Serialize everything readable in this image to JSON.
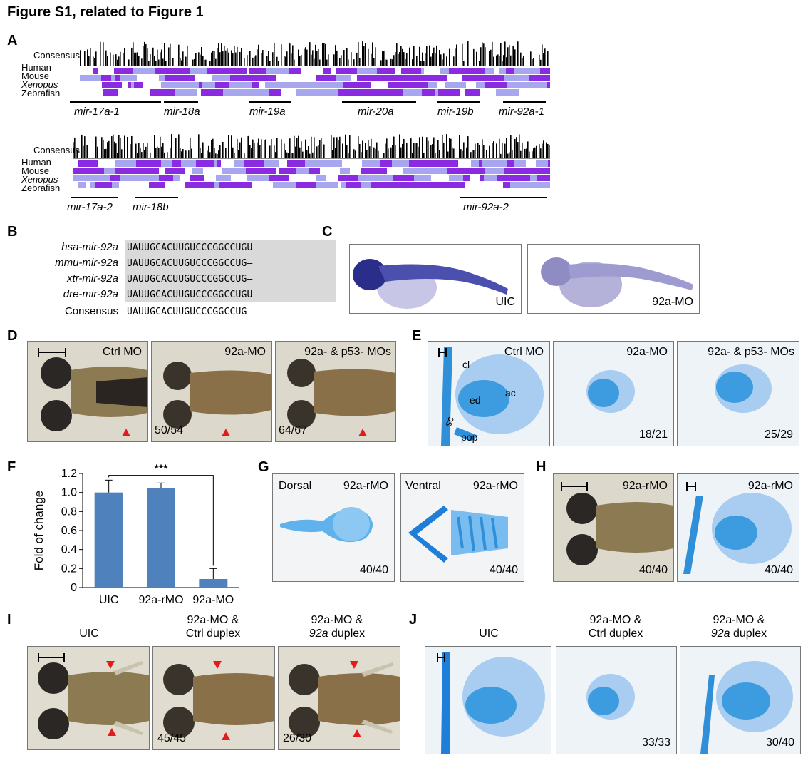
{
  "figure_title": "Figure S1, related to Figure 1",
  "panels": {
    "A": {
      "label": "A",
      "rows": [
        "Consensus",
        "Human",
        "Mouse",
        "Xenopus",
        "Zebrafish"
      ],
      "top_genes": [
        "mir-17a-1",
        "mir-18a",
        "mir-19a",
        "mir-20a",
        "mir-19b",
        "mir-92a-1"
      ],
      "bottom_genes": [
        "mir-17a-2",
        "mir-18b",
        "mir-92a-2"
      ]
    },
    "B": {
      "label": "B",
      "sequences": [
        {
          "name": "hsa-mir-92a",
          "seq": "UAUUGCACUUGUCCCGGCCUGU"
        },
        {
          "name": "mmu-mir-92a",
          "seq": "UAUUGCACUUGUCCCGGCCUG–"
        },
        {
          "name": "xtr-mir-92a",
          "seq": "UAUUGCACUUGUCCCGGCCUG–"
        },
        {
          "name": "dre-mir-92a",
          "seq": "UAUUGCACUUGUCCCGGCCUGU"
        }
      ],
      "consensus_label": "Consensus",
      "consensus_seq": "UAUUGCACUUGUCCCGGCCUG"
    },
    "C": {
      "label": "C",
      "left": "UIC",
      "right": "92a-MO"
    },
    "D": {
      "label": "D",
      "titles": [
        "Ctrl MO",
        "92a-MO",
        "92a- & p53- MOs"
      ],
      "ratios": [
        "50/54",
        "64/67"
      ]
    },
    "E": {
      "label": "E",
      "titles": [
        "Ctrl MO",
        "92a-MO",
        "92a- & p53- MOs"
      ],
      "ratios": [
        "18/21",
        "25/29"
      ],
      "annotations": {
        "cl": "cl",
        "ed": "ed",
        "ac": "ac",
        "sc": "sc",
        "pop": "pop"
      }
    },
    "F": {
      "label": "F",
      "significance": "***"
    },
    "G": {
      "label": "G",
      "views": [
        "Dorsal",
        "Ventral"
      ],
      "title": "92a-rMO",
      "ratios": [
        "40/40",
        "40/40"
      ]
    },
    "H": {
      "label": "H",
      "title": "92a-rMO",
      "ratios": [
        "40/40",
        "40/40"
      ]
    },
    "I": {
      "label": "I",
      "titles": [
        "UIC",
        "92a-MO &",
        "Ctrl duplex",
        "92a-MO &",
        "92a",
        " duplex"
      ],
      "ratios": [
        "45/45",
        "26/30"
      ]
    },
    "J": {
      "label": "J",
      "titles": [
        "UIC",
        "92a-MO &",
        "Ctrl duplex",
        "92a-MO &",
        "92a",
        " duplex"
      ],
      "ratios": [
        "33/33",
        "30/40"
      ]
    }
  },
  "chart_data": {
    "type": "bar",
    "categories": [
      "UIC",
      "92a-rMO",
      "92a-MO"
    ],
    "values": [
      1.0,
      1.05,
      0.09
    ],
    "errors": [
      0.13,
      0.05,
      0.11
    ],
    "ylabel": "Fold of change",
    "ylim": [
      0,
      1.2
    ],
    "yticks": [
      "0",
      "0.2",
      "0.4",
      "0.6",
      "0.8",
      "1.0",
      "1.2"
    ],
    "bar_color": "#4f81bd"
  },
  "colors": {
    "purple": "#8a2be2",
    "light_purple": "#a8a6ee",
    "stain_blue": "#2f8fd8",
    "arrow_red": "#e21b1b"
  }
}
